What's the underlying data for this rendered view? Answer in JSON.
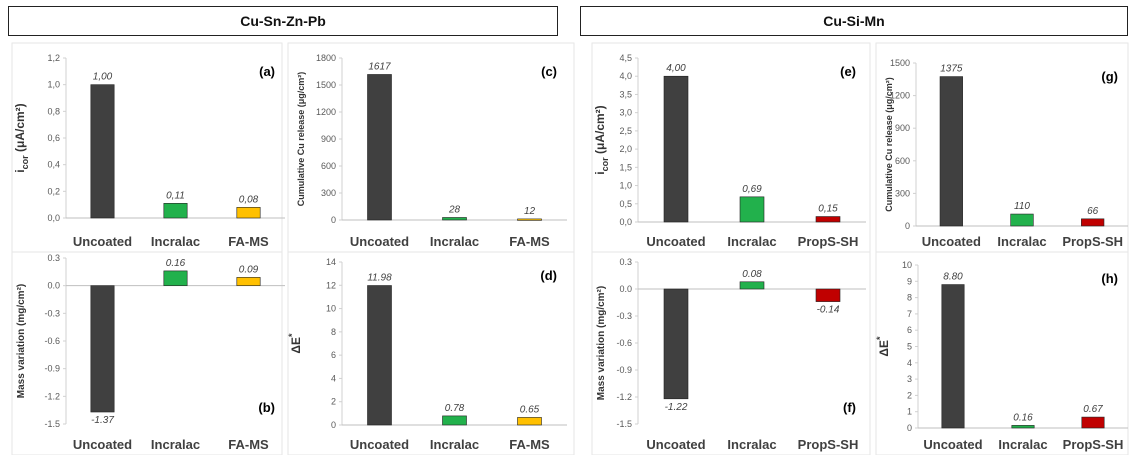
{
  "headers": {
    "left": "Cu-Sn-Zn-Pb",
    "right": "Cu-Si-Mn"
  },
  "colors": {
    "Uncoated": "#404040",
    "Incralac": "#22b14c",
    "FA-MS": "#ffc000",
    "PropS-SH": "#c00000"
  },
  "chart_data": [
    {
      "id": "a",
      "panel_label": "(a)",
      "type": "bar",
      "ylabel": "i_cor (μA/cm²)",
      "ylim": [
        0,
        1.2
      ],
      "ticks": [
        "0,0",
        "0,2",
        "0,4",
        "0,6",
        "0,8",
        "1,0",
        "1,2"
      ],
      "categories": [
        "Uncoated",
        "Incralac",
        "FA-MS"
      ],
      "values": [
        1.0,
        0.11,
        0.08
      ],
      "value_labels": [
        "1,00",
        "0,11",
        "0,08"
      ]
    },
    {
      "id": "c",
      "panel_label": "(c)",
      "type": "bar",
      "ylabel": "Cumulative Cu release (μg/cm²)",
      "ylim": [
        0,
        1800
      ],
      "ticks": [
        "0",
        "300",
        "600",
        "900",
        "1200",
        "1500",
        "1800"
      ],
      "categories": [
        "Uncoated",
        "Incralac",
        "FA-MS"
      ],
      "values": [
        1617,
        28,
        12
      ],
      "value_labels": [
        "1617",
        "28",
        "12"
      ]
    },
    {
      "id": "e",
      "panel_label": "(e)",
      "type": "bar",
      "ylabel": "i_cor (μA/cm²)",
      "ylim": [
        0,
        4.5
      ],
      "ticks": [
        "0,0",
        "0,5",
        "1,0",
        "1,5",
        "2,0",
        "2,5",
        "3,0",
        "3,5",
        "4,0",
        "4,5"
      ],
      "categories": [
        "Uncoated",
        "Incralac",
        "PropS-SH"
      ],
      "values": [
        4.0,
        0.69,
        0.15
      ],
      "value_labels": [
        "4,00",
        "0,69",
        "0,15"
      ]
    },
    {
      "id": "g",
      "panel_label": "(g)",
      "type": "bar",
      "ylabel": "Cumulative Cu release (μg/cm²)",
      "ylim": [
        0,
        1500
      ],
      "ticks": [
        "0",
        "300",
        "600",
        "900",
        "1200",
        "1500"
      ],
      "categories": [
        "Uncoated",
        "Incralac",
        "PropS-SH"
      ],
      "values": [
        1375,
        110,
        66
      ],
      "value_labels": [
        "1375",
        "110",
        "66"
      ]
    },
    {
      "id": "b",
      "panel_label": "(b)",
      "type": "bar",
      "ylabel": "Mass variation (mg/cm²)",
      "ylim": [
        -1.5,
        0.3
      ],
      "ticks": [
        "-1.5",
        "-1.2",
        "-0.9",
        "-0.6",
        "-0.3",
        "0.0",
        "0.3"
      ],
      "categories": [
        "Uncoated",
        "Incralac",
        "FA-MS"
      ],
      "values": [
        -1.37,
        0.16,
        0.09
      ],
      "value_labels": [
        "-1.37",
        "0.16",
        "0.09"
      ]
    },
    {
      "id": "d",
      "panel_label": "(d)",
      "type": "bar",
      "ylabel": "ΔE*",
      "ylim": [
        0,
        14
      ],
      "ticks": [
        "0",
        "2",
        "4",
        "6",
        "8",
        "10",
        "12",
        "14"
      ],
      "categories": [
        "Uncoated",
        "Incralac",
        "FA-MS"
      ],
      "values": [
        11.98,
        0.78,
        0.65
      ],
      "value_labels": [
        "11.98",
        "0.78",
        "0.65"
      ]
    },
    {
      "id": "f",
      "panel_label": "(f)",
      "type": "bar",
      "ylabel": "Mass variation (mg/cm²)",
      "ylim": [
        -1.5,
        0.3
      ],
      "ticks": [
        "-1.5",
        "-1.2",
        "-0.9",
        "-0.6",
        "-0.3",
        "0.0",
        "0.3"
      ],
      "categories": [
        "Uncoated",
        "Incralac",
        "PropS-SH"
      ],
      "values": [
        -1.22,
        0.08,
        -0.14
      ],
      "value_labels": [
        "-1.22",
        "0.08",
        "-0.14"
      ]
    },
    {
      "id": "h",
      "panel_label": "(h)",
      "type": "bar",
      "ylabel": "ΔE*",
      "ylim": [
        0,
        10
      ],
      "ticks": [
        "0",
        "1",
        "2",
        "3",
        "4",
        "5",
        "6",
        "7",
        "8",
        "9",
        "10"
      ],
      "categories": [
        "Uncoated",
        "Incralac",
        "PropS-SH"
      ],
      "values": [
        8.8,
        0.16,
        0.67
      ],
      "value_labels": [
        "8.80",
        "0.16",
        "0.67"
      ]
    }
  ]
}
